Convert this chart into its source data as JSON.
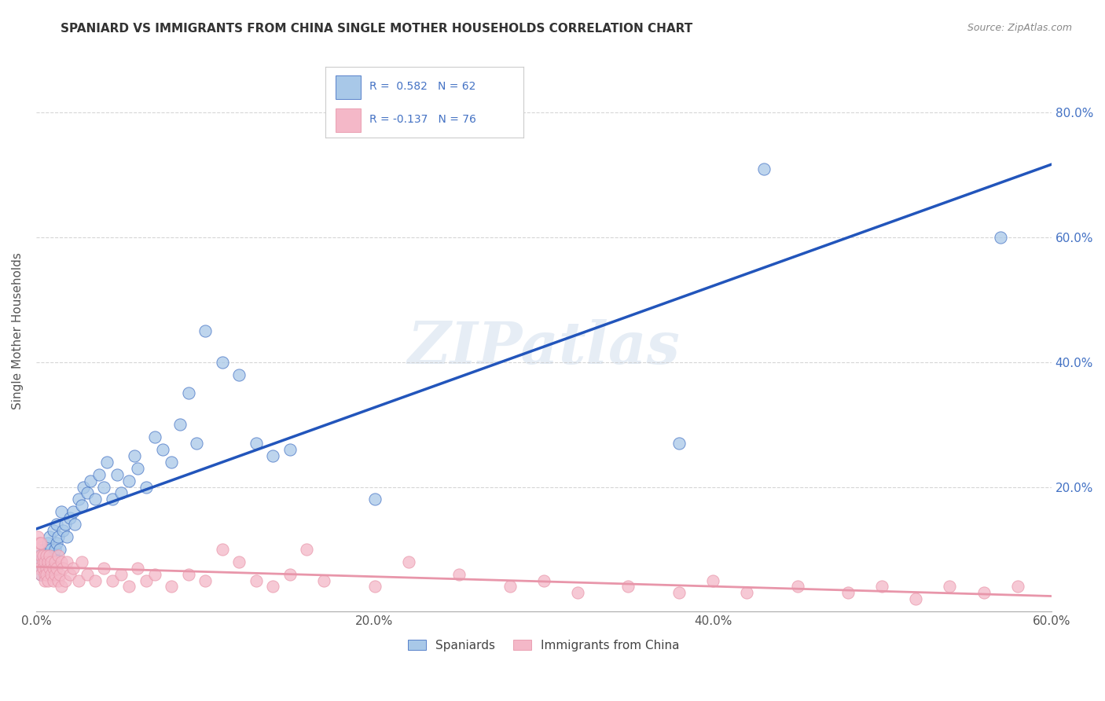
{
  "title": "SPANIARD VS IMMIGRANTS FROM CHINA SINGLE MOTHER HOUSEHOLDS CORRELATION CHART",
  "source": "Source: ZipAtlas.com",
  "xlabel": "",
  "ylabel": "Single Mother Households",
  "xlim": [
    0.0,
    0.6
  ],
  "ylim": [
    0.0,
    0.9
  ],
  "xtick_labels": [
    "0.0%",
    "",
    "20.0%",
    "",
    "40.0%",
    "",
    "60.0%"
  ],
  "xtick_vals": [
    0.0,
    0.1,
    0.2,
    0.3,
    0.4,
    0.5,
    0.6
  ],
  "ytick_labels": [
    "20.0%",
    "40.0%",
    "60.0%",
    "80.0%"
  ],
  "ytick_vals": [
    0.2,
    0.4,
    0.6,
    0.8
  ],
  "spaniard_color": "#a8c8e8",
  "china_color": "#f4b8c8",
  "spaniard_edge_color": "#4472c4",
  "china_edge_color": "#e896aa",
  "spaniard_line_color": "#2255bb",
  "china_line_color": "#e896aa",
  "R_spaniard": 0.582,
  "N_spaniard": 62,
  "R_china": -0.137,
  "N_china": 76,
  "legend_label_spaniard": "Spaniards",
  "legend_label_china": "Immigrants from China",
  "watermark": "ZIPatlas",
  "background_color": "#ffffff",
  "grid_color": "#cccccc",
  "title_color": "#333333",
  "axis_label_color": "#555555",
  "legend_text_color": "#4472c4",
  "spaniard_points": [
    [
      0.001,
      0.08
    ],
    [
      0.002,
      0.07
    ],
    [
      0.002,
      0.09
    ],
    [
      0.003,
      0.06
    ],
    [
      0.003,
      0.08
    ],
    [
      0.004,
      0.07
    ],
    [
      0.004,
      0.09
    ],
    [
      0.005,
      0.08
    ],
    [
      0.005,
      0.1
    ],
    [
      0.006,
      0.07
    ],
    [
      0.006,
      0.09
    ],
    [
      0.007,
      0.08
    ],
    [
      0.007,
      0.11
    ],
    [
      0.008,
      0.09
    ],
    [
      0.008,
      0.12
    ],
    [
      0.009,
      0.1
    ],
    [
      0.01,
      0.09
    ],
    [
      0.01,
      0.13
    ],
    [
      0.011,
      0.1
    ],
    [
      0.012,
      0.11
    ],
    [
      0.012,
      0.14
    ],
    [
      0.013,
      0.12
    ],
    [
      0.014,
      0.1
    ],
    [
      0.015,
      0.16
    ],
    [
      0.016,
      0.13
    ],
    [
      0.017,
      0.14
    ],
    [
      0.018,
      0.12
    ],
    [
      0.02,
      0.15
    ],
    [
      0.022,
      0.16
    ],
    [
      0.023,
      0.14
    ],
    [
      0.025,
      0.18
    ],
    [
      0.027,
      0.17
    ],
    [
      0.028,
      0.2
    ],
    [
      0.03,
      0.19
    ],
    [
      0.032,
      0.21
    ],
    [
      0.035,
      0.18
    ],
    [
      0.037,
      0.22
    ],
    [
      0.04,
      0.2
    ],
    [
      0.042,
      0.24
    ],
    [
      0.045,
      0.18
    ],
    [
      0.048,
      0.22
    ],
    [
      0.05,
      0.19
    ],
    [
      0.055,
      0.21
    ],
    [
      0.058,
      0.25
    ],
    [
      0.06,
      0.23
    ],
    [
      0.065,
      0.2
    ],
    [
      0.07,
      0.28
    ],
    [
      0.075,
      0.26
    ],
    [
      0.08,
      0.24
    ],
    [
      0.085,
      0.3
    ],
    [
      0.09,
      0.35
    ],
    [
      0.095,
      0.27
    ],
    [
      0.1,
      0.45
    ],
    [
      0.11,
      0.4
    ],
    [
      0.12,
      0.38
    ],
    [
      0.13,
      0.27
    ],
    [
      0.14,
      0.25
    ],
    [
      0.15,
      0.26
    ],
    [
      0.2,
      0.18
    ],
    [
      0.38,
      0.27
    ],
    [
      0.43,
      0.71
    ],
    [
      0.57,
      0.6
    ]
  ],
  "china_points": [
    [
      0.001,
      0.1
    ],
    [
      0.001,
      0.12
    ],
    [
      0.002,
      0.08
    ],
    [
      0.002,
      0.11
    ],
    [
      0.002,
      0.07
    ],
    [
      0.003,
      0.09
    ],
    [
      0.003,
      0.06
    ],
    [
      0.003,
      0.11
    ],
    [
      0.004,
      0.08
    ],
    [
      0.004,
      0.07
    ],
    [
      0.004,
      0.09
    ],
    [
      0.005,
      0.06
    ],
    [
      0.005,
      0.08
    ],
    [
      0.005,
      0.05
    ],
    [
      0.006,
      0.07
    ],
    [
      0.006,
      0.09
    ],
    [
      0.006,
      0.06
    ],
    [
      0.007,
      0.08
    ],
    [
      0.007,
      0.05
    ],
    [
      0.008,
      0.07
    ],
    [
      0.008,
      0.09
    ],
    [
      0.009,
      0.06
    ],
    [
      0.009,
      0.08
    ],
    [
      0.01,
      0.07
    ],
    [
      0.01,
      0.05
    ],
    [
      0.011,
      0.08
    ],
    [
      0.011,
      0.06
    ],
    [
      0.012,
      0.07
    ],
    [
      0.013,
      0.05
    ],
    [
      0.013,
      0.09
    ],
    [
      0.014,
      0.06
    ],
    [
      0.015,
      0.08
    ],
    [
      0.015,
      0.04
    ],
    [
      0.016,
      0.07
    ],
    [
      0.017,
      0.05
    ],
    [
      0.018,
      0.08
    ],
    [
      0.02,
      0.06
    ],
    [
      0.022,
      0.07
    ],
    [
      0.025,
      0.05
    ],
    [
      0.027,
      0.08
    ],
    [
      0.03,
      0.06
    ],
    [
      0.035,
      0.05
    ],
    [
      0.04,
      0.07
    ],
    [
      0.045,
      0.05
    ],
    [
      0.05,
      0.06
    ],
    [
      0.055,
      0.04
    ],
    [
      0.06,
      0.07
    ],
    [
      0.065,
      0.05
    ],
    [
      0.07,
      0.06
    ],
    [
      0.08,
      0.04
    ],
    [
      0.09,
      0.06
    ],
    [
      0.1,
      0.05
    ],
    [
      0.11,
      0.1
    ],
    [
      0.12,
      0.08
    ],
    [
      0.13,
      0.05
    ],
    [
      0.14,
      0.04
    ],
    [
      0.15,
      0.06
    ],
    [
      0.16,
      0.1
    ],
    [
      0.17,
      0.05
    ],
    [
      0.2,
      0.04
    ],
    [
      0.22,
      0.08
    ],
    [
      0.25,
      0.06
    ],
    [
      0.28,
      0.04
    ],
    [
      0.3,
      0.05
    ],
    [
      0.32,
      0.03
    ],
    [
      0.35,
      0.04
    ],
    [
      0.38,
      0.03
    ],
    [
      0.4,
      0.05
    ],
    [
      0.42,
      0.03
    ],
    [
      0.45,
      0.04
    ],
    [
      0.48,
      0.03
    ],
    [
      0.5,
      0.04
    ],
    [
      0.52,
      0.02
    ],
    [
      0.54,
      0.04
    ],
    [
      0.56,
      0.03
    ],
    [
      0.58,
      0.04
    ]
  ]
}
